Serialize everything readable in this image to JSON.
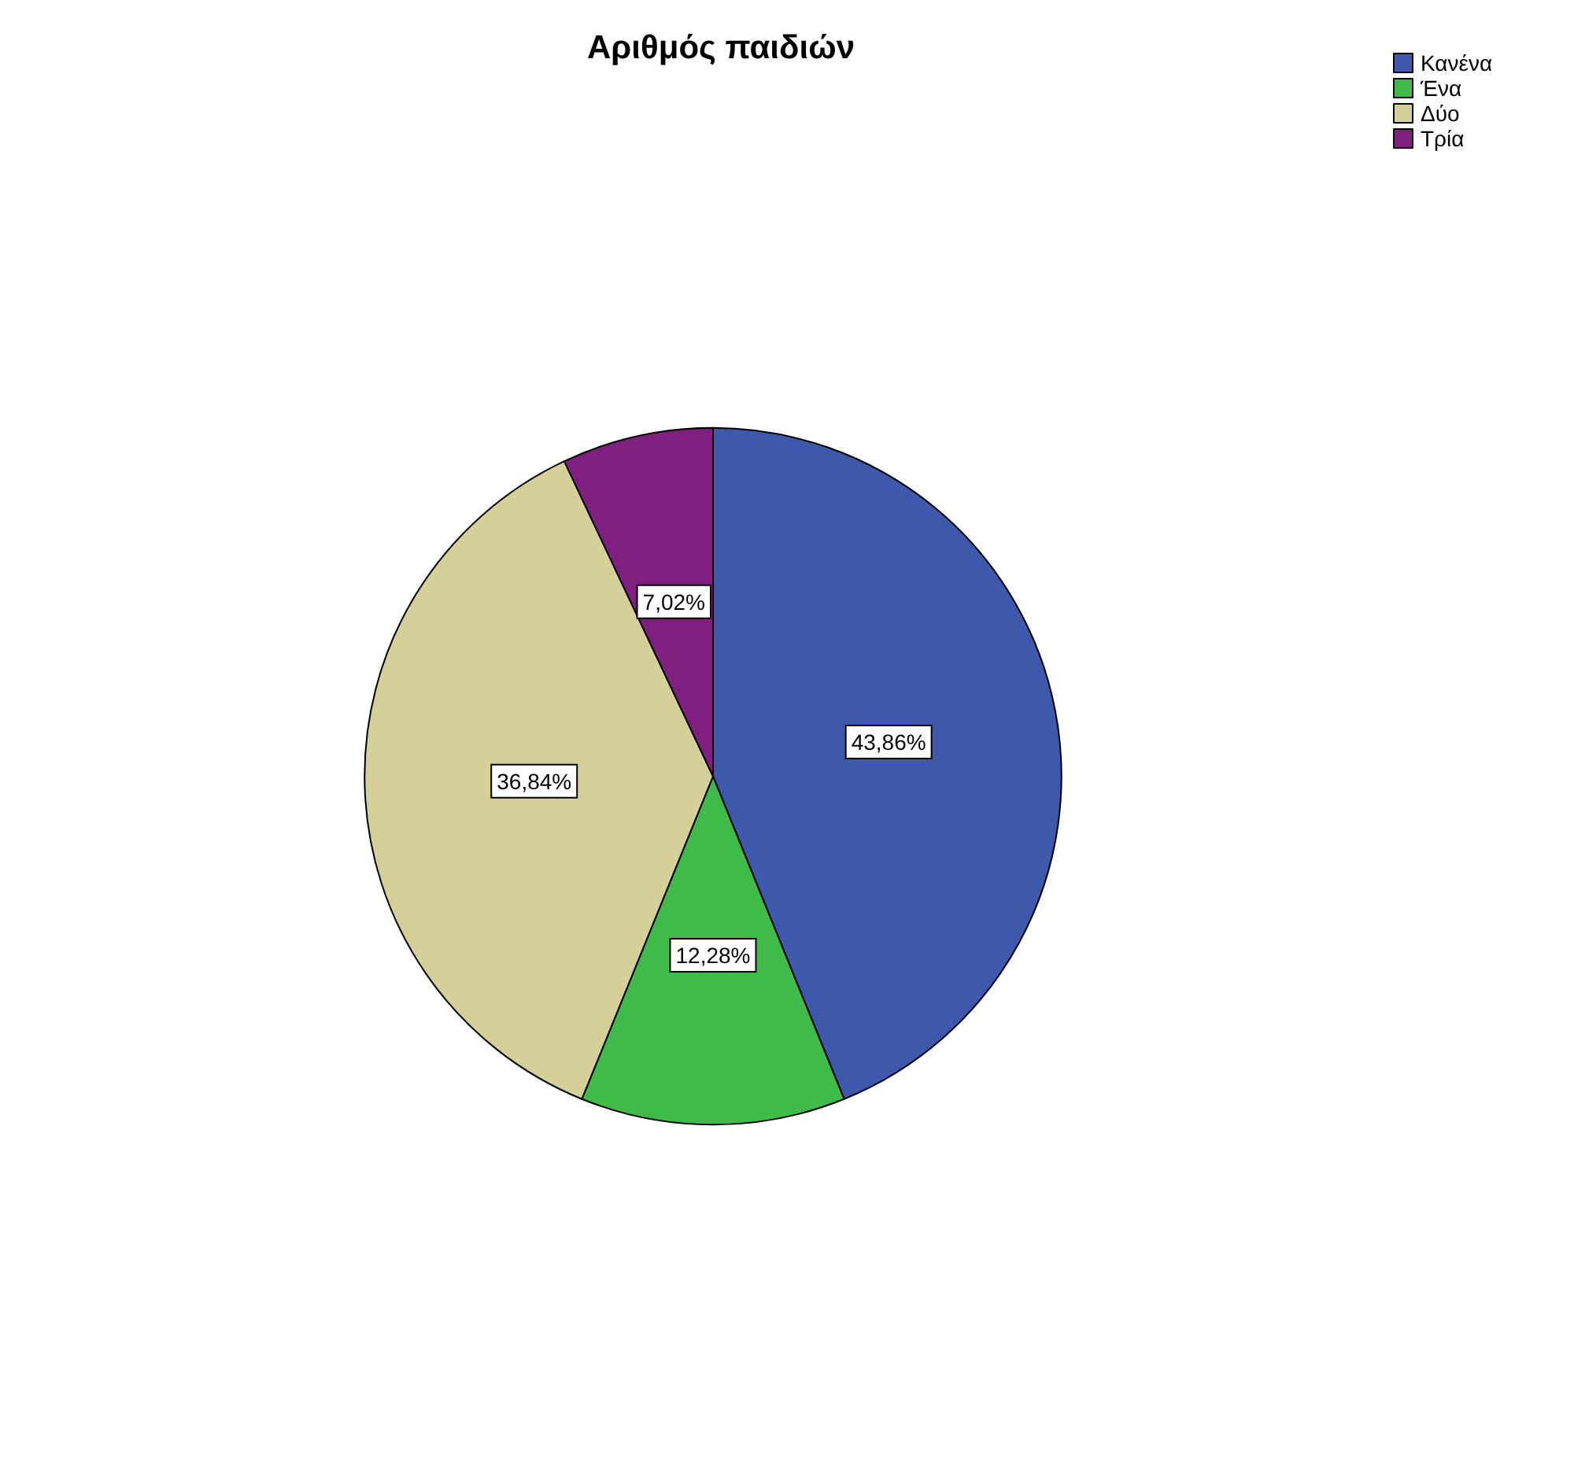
{
  "chart_data": {
    "type": "pie",
    "title": "Αριθμός παιδιών",
    "categories": [
      "Κανένα",
      "Ένα",
      "Δύο",
      "Τρία"
    ],
    "values": [
      43.86,
      12.28,
      36.84,
      7.02
    ],
    "value_labels": [
      "43,86%",
      "12,28%",
      "36,84%",
      "7,02%"
    ],
    "colors": [
      "#3e58ac",
      "#3fbb4a",
      "#d5cf9a",
      "#7f2080"
    ],
    "legend": "top right"
  }
}
